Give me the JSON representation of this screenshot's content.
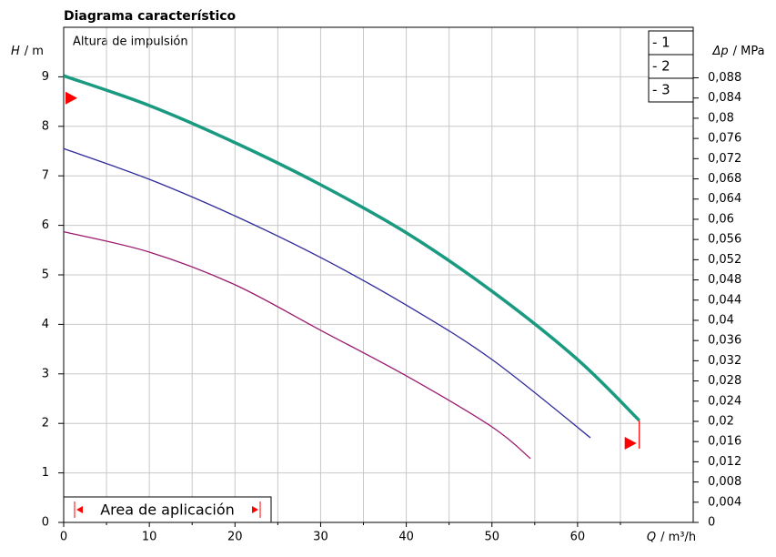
{
  "chart_data": {
    "type": "line",
    "title": "Diagrama característico",
    "annotation": "Altura de impulsión",
    "x_label": {
      "symbol": "Q",
      "unit": "/ m³/h"
    },
    "y_label": {
      "symbol": "H",
      "unit": "/ m"
    },
    "y2_label": {
      "symbol": "Δp",
      "unit": "/ MPa"
    },
    "xlim": [
      0,
      73.5
    ],
    "xticks": [
      0,
      10,
      20,
      30,
      40,
      50,
      60
    ],
    "xminorticks": [
      5,
      15,
      25,
      35,
      45,
      55,
      65
    ],
    "ylim": [
      0,
      10
    ],
    "yticks": [
      0,
      1,
      2,
      3,
      4,
      5,
      6,
      7,
      8,
      9
    ],
    "y2lim": [
      0,
      0.098
    ],
    "y2ticks": [
      0,
      {
        "value": 0.004,
        "label": "0,004"
      },
      {
        "value": 0.008,
        "label": "0,008"
      },
      {
        "value": 0.012,
        "label": "0,012"
      },
      {
        "value": 0.016,
        "label": "0,016"
      },
      {
        "value": 0.02,
        "label": "0,02"
      },
      {
        "value": 0.024,
        "label": "0,024"
      },
      {
        "value": 0.028,
        "label": "0,028"
      },
      {
        "value": 0.032,
        "label": "0,032"
      },
      {
        "value": 0.036,
        "label": "0,036"
      },
      {
        "value": 0.04,
        "label": "0,04"
      },
      {
        "value": 0.044,
        "label": "0,044"
      },
      {
        "value": 0.048,
        "label": "0,048"
      },
      {
        "value": 0.052,
        "label": "0,052"
      },
      {
        "value": 0.056,
        "label": "0,056"
      },
      {
        "value": 0.06,
        "label": "0,06"
      },
      {
        "value": 0.064,
        "label": "0,064"
      },
      {
        "value": 0.068,
        "label": "0,068"
      },
      {
        "value": 0.072,
        "label": "0,072"
      },
      {
        "value": 0.076,
        "label": "0,076"
      },
      {
        "value": 0.08,
        "label": "0,08"
      },
      {
        "value": 0.084,
        "label": "0,084"
      },
      {
        "value": 0.088,
        "label": "0,088"
      }
    ],
    "grid": true,
    "legend": "upper right",
    "series": [
      {
        "name": "- 1",
        "color": "#1a9a80",
        "width": 3.5,
        "x": [
          0,
          10,
          20,
          30,
          40,
          50,
          60,
          67.2
        ],
        "values": [
          9.02,
          8.42,
          7.67,
          6.82,
          5.85,
          4.67,
          3.29,
          2.06
        ]
      },
      {
        "name": "- 2",
        "color": "#2e2a9a",
        "width": 1.3,
        "x": [
          0,
          10,
          20,
          30,
          40,
          50,
          61.5
        ],
        "values": [
          7.55,
          6.93,
          6.19,
          5.35,
          4.39,
          3.29,
          1.71
        ]
      },
      {
        "name": "- 3",
        "color": "#9a1a6e",
        "width": 1.3,
        "x": [
          0,
          10,
          20,
          30,
          40,
          50,
          54.5
        ],
        "values": [
          5.87,
          5.46,
          4.8,
          3.88,
          2.96,
          1.93,
          1.29
        ]
      }
    ],
    "markers": [
      {
        "x": 0,
        "y": 8.57
      },
      {
        "x": 67.2,
        "y": 1.6
      }
    ],
    "marker_color": "#ff0000",
    "range_label": "Area de aplicación"
  }
}
